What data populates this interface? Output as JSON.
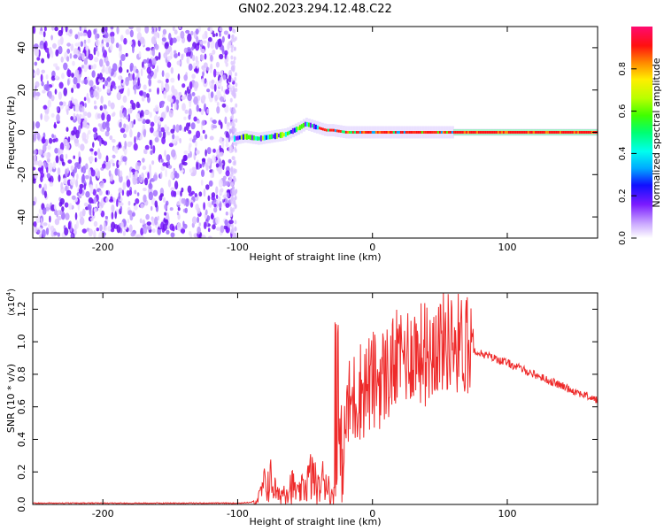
{
  "title": "GN02.2023.294.12.48.C22",
  "colors": {
    "snr_line": "#ee2a2a",
    "spectrogram_noise": "#7a1aff",
    "background": "#ffffff"
  },
  "chart_data": [
    {
      "type": "heatmap",
      "title": "",
      "xlabel": "Height of straight line (km)",
      "ylabel": "Frequency (Hz)",
      "xlim": [
        -252,
        167
      ],
      "ylim": [
        -50,
        50
      ],
      "xticks": [
        -200,
        -100,
        0,
        100
      ],
      "yticks": [
        -40,
        -20,
        0,
        20,
        40
      ],
      "noise_region_x": [
        -252,
        -103
      ],
      "signal_trace": {
        "x": [
          -103,
          -95,
          -85,
          -75,
          -65,
          -55,
          -50,
          -45,
          -40,
          -35,
          -30,
          -20,
          -10,
          0,
          20,
          40,
          60,
          100,
          167
        ],
        "frequency": [
          -3,
          -2,
          -3,
          -2,
          -1,
          2,
          4,
          3,
          2,
          1,
          1,
          0,
          0,
          0,
          0,
          0,
          0,
          0,
          0
        ]
      },
      "colorbar": {
        "label": "Normalized spectral amplitude",
        "range": [
          0,
          1
        ],
        "ticks": [
          0.0,
          0.2,
          0.4,
          0.6,
          0.8
        ]
      }
    },
    {
      "type": "line",
      "title": "",
      "xlabel": "Height of straight line (km)",
      "ylabel": "SNR (10 * v/v)",
      "y_multiplier": "(x10",
      "y_multiplier_exp": "4",
      "y_multiplier_close": ")",
      "xlim": [
        -252,
        167
      ],
      "ylim": [
        0,
        1.3
      ],
      "xticks": [
        -200,
        -100,
        0,
        100
      ],
      "yticks": [
        "0.0",
        "0.2",
        "0.4",
        "0.6",
        "0.8",
        "1.0",
        "1.2"
      ],
      "x": [
        -252,
        -200,
        -150,
        -100,
        -90,
        -85,
        -80,
        -75,
        -70,
        -65,
        -60,
        -55,
        -50,
        -45,
        -40,
        -35,
        -30,
        -27,
        -25,
        -20,
        -10,
        0,
        10,
        20,
        30,
        40,
        50,
        60,
        70,
        80,
        100,
        120,
        140,
        167
      ],
      "y": [
        0.005,
        0.005,
        0.005,
        0.005,
        0.01,
        0.05,
        0.2,
        0.25,
        0.08,
        0.15,
        0.2,
        0.1,
        0.2,
        0.3,
        0.15,
        0.3,
        0.08,
        0.2,
        0.5,
        0.55,
        0.7,
        0.75,
        0.8,
        0.9,
        0.95,
        0.92,
        1.0,
        1.0,
        0.98,
        0.93,
        0.87,
        0.8,
        0.73,
        0.64
      ]
    }
  ]
}
